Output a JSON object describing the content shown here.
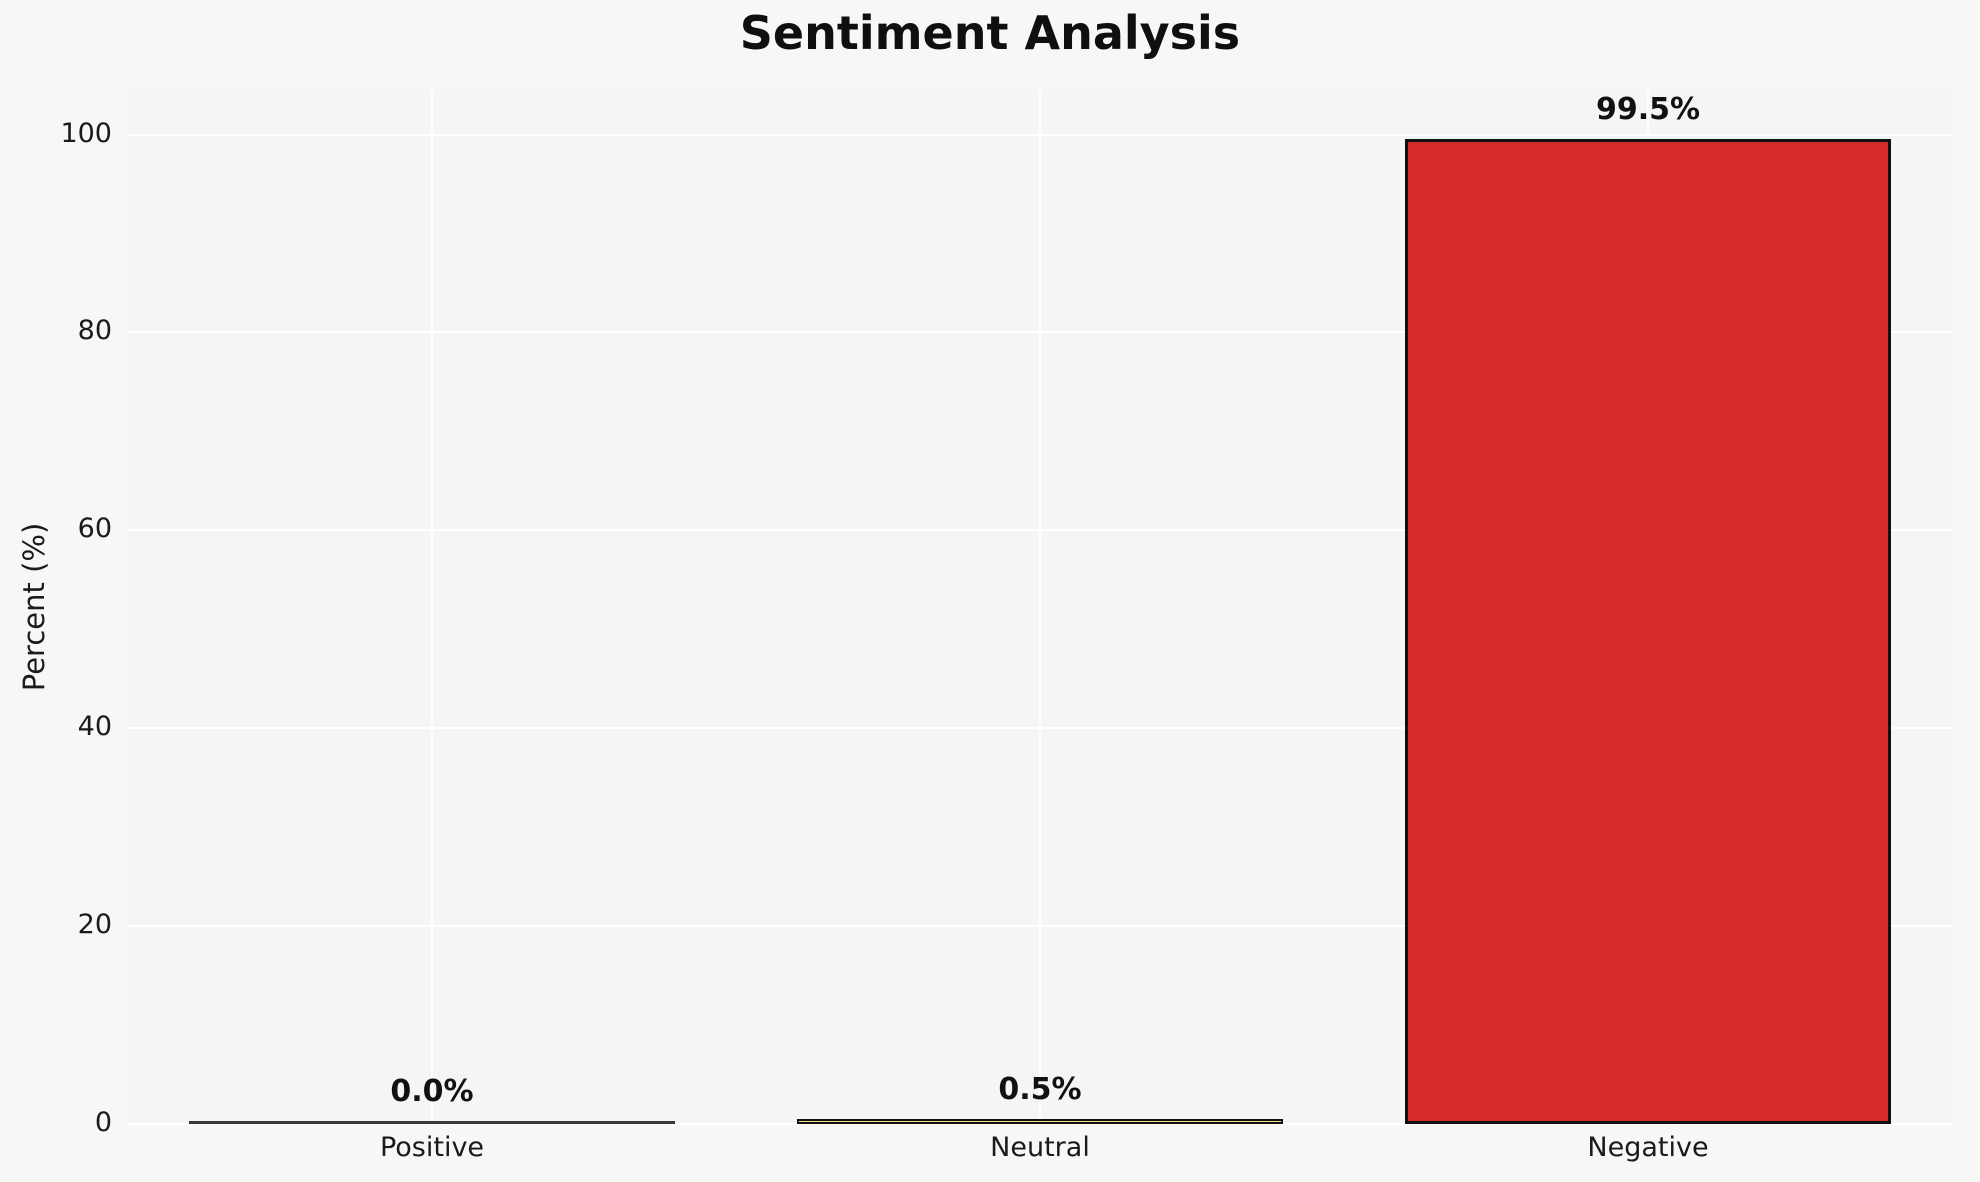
{
  "chart_data": {
    "type": "bar",
    "title": "Sentiment Analysis",
    "xlabel": "",
    "ylabel": "Percent (%)",
    "categories": [
      "Positive",
      "Neutral",
      "Negative"
    ],
    "values": [
      0.0,
      0.5,
      99.5
    ],
    "value_labels": [
      "0.0%",
      "0.5%",
      "99.5%"
    ],
    "bar_colors": [
      "#3a3a3a",
      "#f0e68c",
      "#d62b2b"
    ],
    "bar_edge_color": "#111111",
    "yticks": [
      0,
      20,
      40,
      60,
      80,
      100
    ],
    "ylim": [
      0,
      104.5
    ],
    "grid": "horizontal-white-gridlines",
    "legend": "none",
    "background_color": "#f7f7f5"
  }
}
